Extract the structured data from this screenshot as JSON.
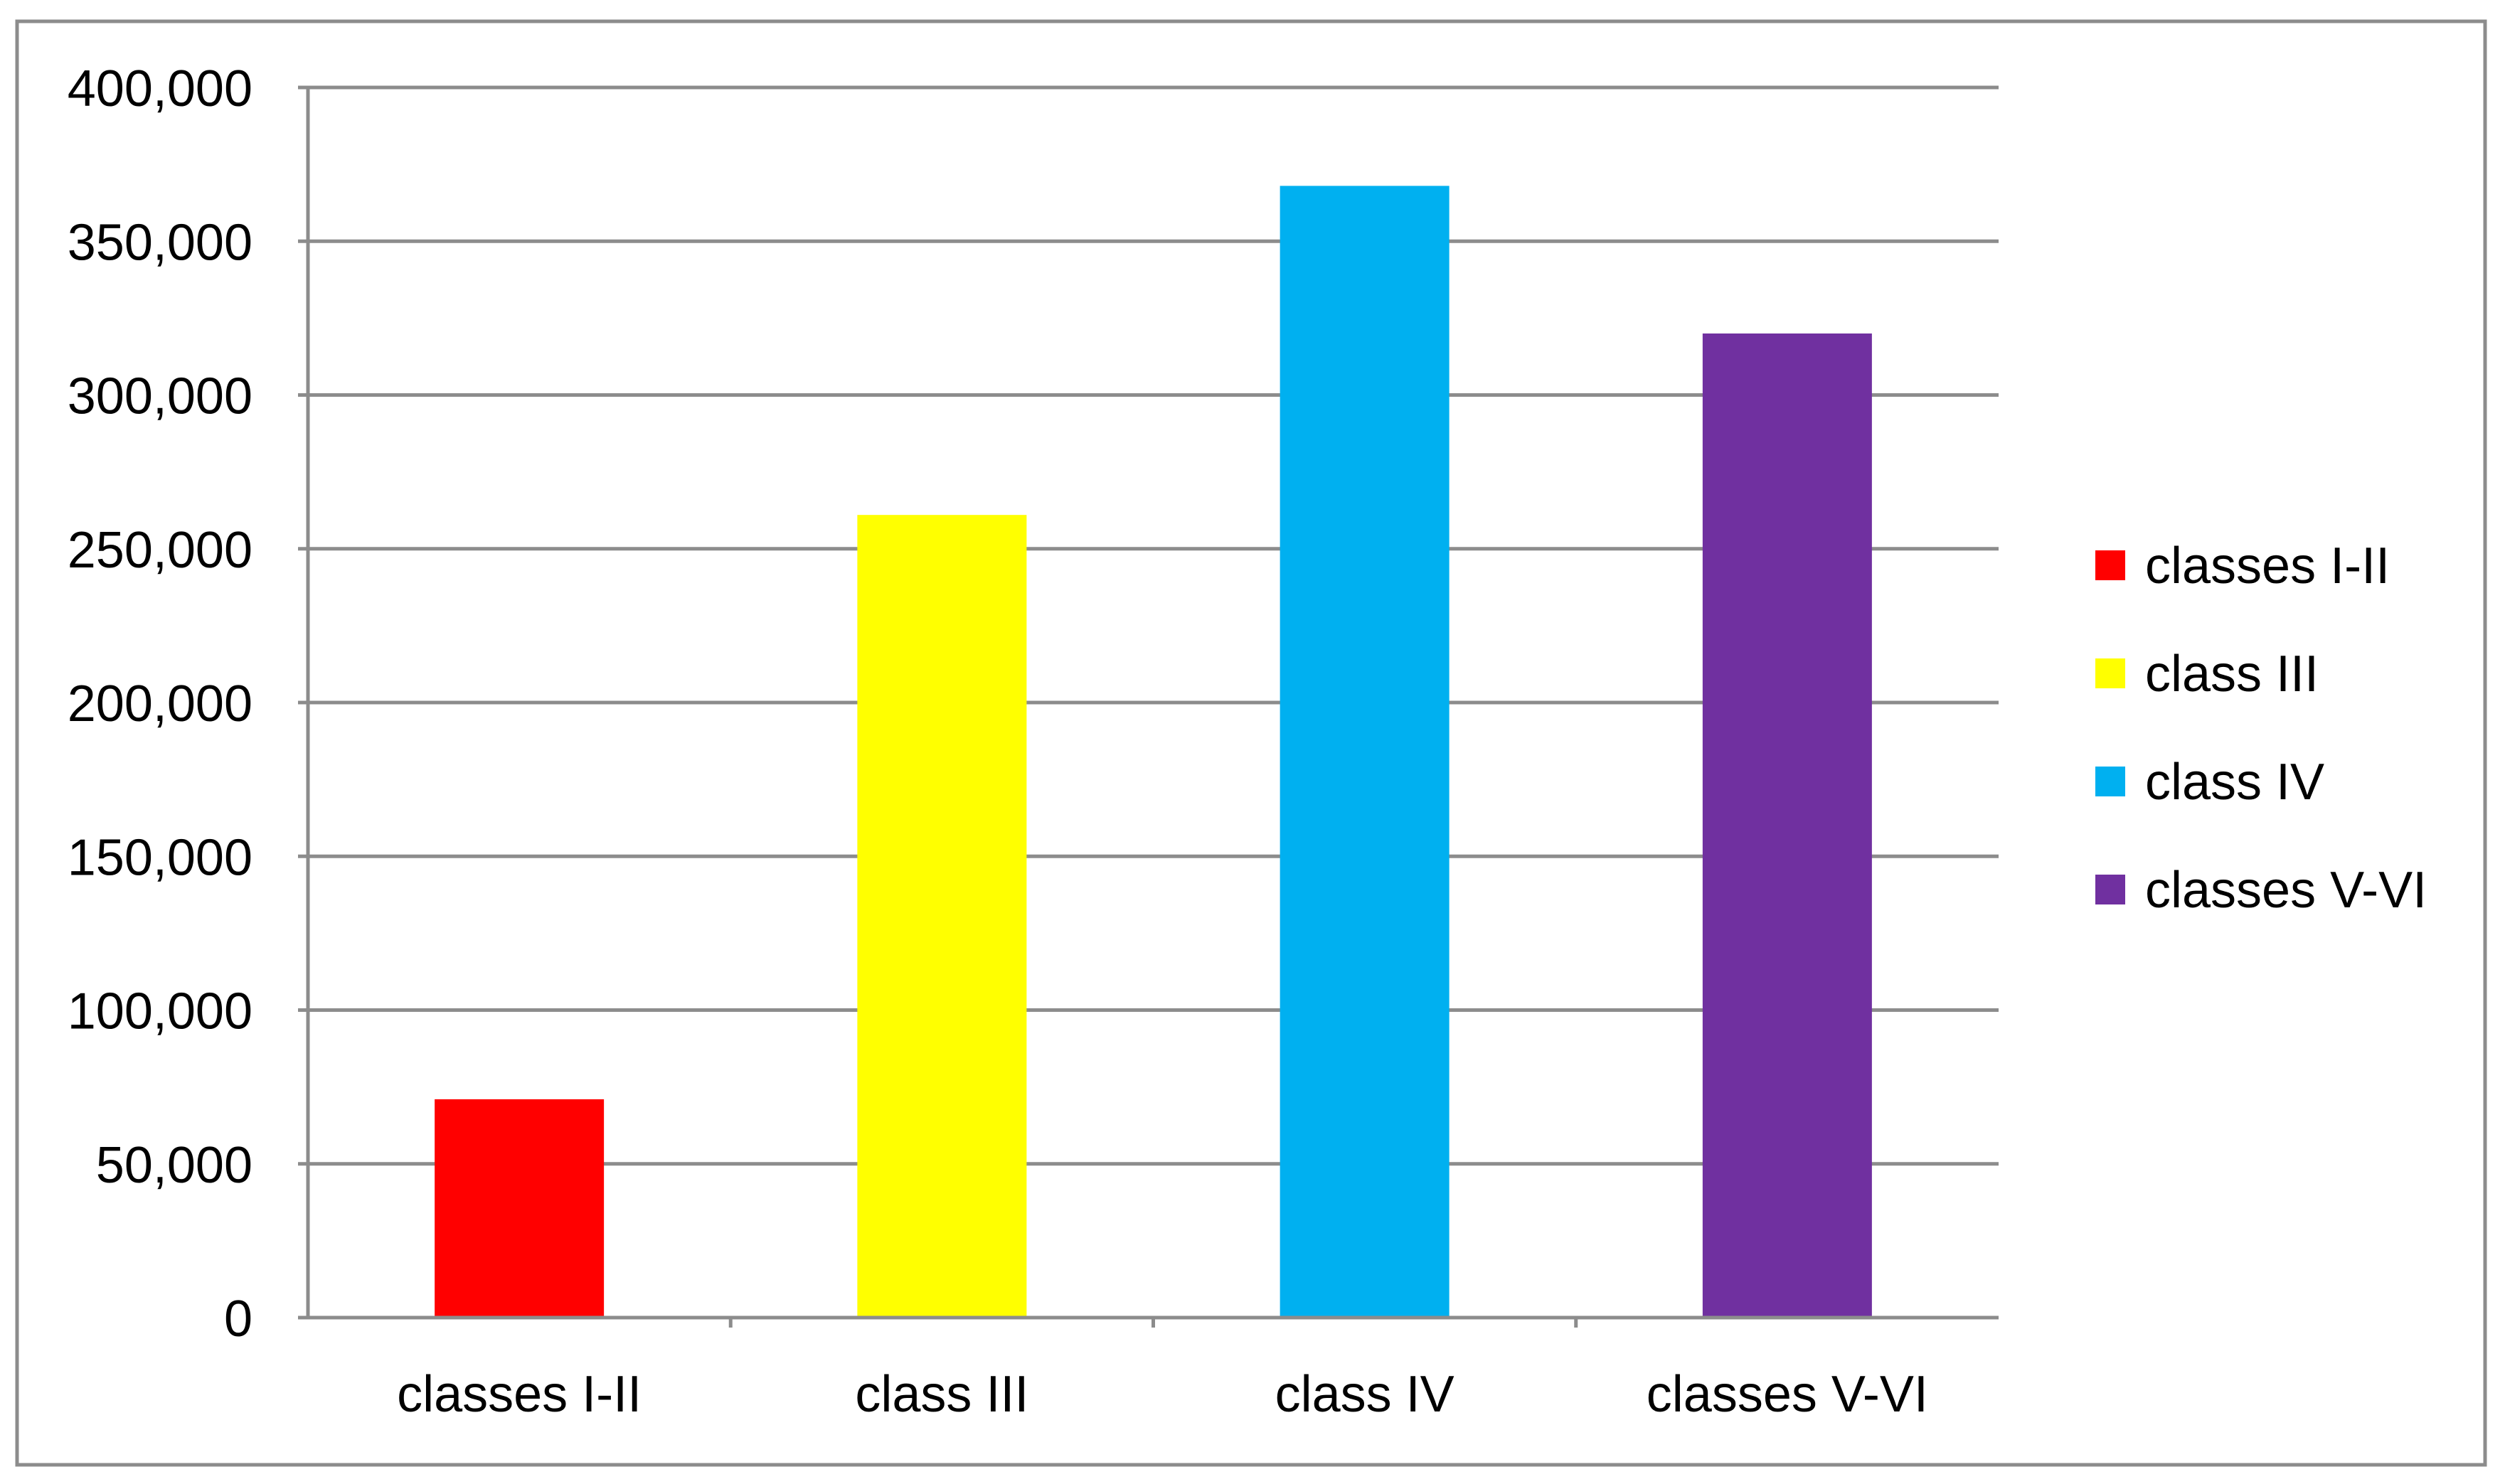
{
  "chart_data": {
    "type": "bar",
    "categories": [
      "classes I-II",
      "class III",
      "class IV",
      "classes V-VI"
    ],
    "values": [
      71000,
      261000,
      368000,
      320000
    ],
    "colors": [
      "#ff0000",
      "#ffff00",
      "#00b0f0",
      "#7030a0"
    ],
    "ylim": [
      0,
      400000
    ],
    "ytick_step": 50000,
    "ytick_labels": [
      "0",
      "50,000",
      "100,000",
      "150,000",
      "200,000",
      "250,000",
      "300,000",
      "350,000",
      "400,000"
    ],
    "grid": true,
    "legend": {
      "position": "right",
      "entries": [
        "classes I-II",
        "class III",
        "class IV",
        "classes V-VI"
      ]
    },
    "title": "",
    "xlabel": "",
    "ylabel": ""
  }
}
